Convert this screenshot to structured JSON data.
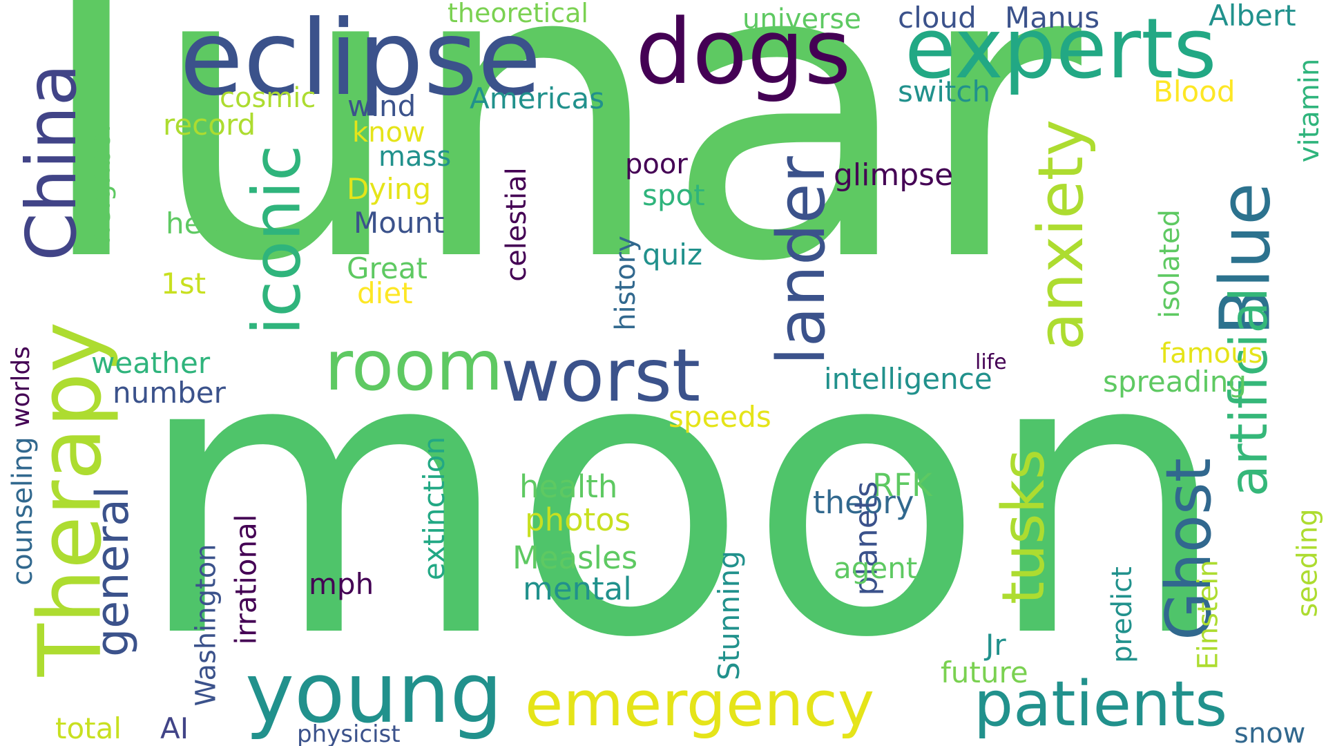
{
  "palette": {
    "background": "#ffffff",
    "green": "#5ec962",
    "teal": "#21918c",
    "seafoam": "#22a884",
    "navy": "#3b528b",
    "purple": "#440154",
    "lime": "#addc30",
    "yellow": "#fde725",
    "indigo": "#414487"
  },
  "words": [
    {
      "text": "lunar",
      "color": "#5ec962",
      "vertical": false
    },
    {
      "text": "moon",
      "color": "#4fc46a",
      "vertical": false
    },
    {
      "text": "eclipse",
      "color": "#3b528b",
      "vertical": false
    },
    {
      "text": "dogs",
      "color": "#440154",
      "vertical": false
    },
    {
      "text": "experts",
      "color": "#22a884",
      "vertical": false
    },
    {
      "text": "China",
      "color": "#414487",
      "vertical": true
    },
    {
      "text": "Therapy",
      "color": "#addc30",
      "vertical": true
    },
    {
      "text": "iconic",
      "color": "#2fb47c",
      "vertical": true
    },
    {
      "text": "room",
      "color": "#5ec962",
      "vertical": false
    },
    {
      "text": "worst",
      "color": "#3b528b",
      "vertical": false
    },
    {
      "text": "lander",
      "color": "#3b528b",
      "vertical": true
    },
    {
      "text": "anxiety",
      "color": "#addc30",
      "vertical": true
    },
    {
      "text": "Blue",
      "color": "#2c728e",
      "vertical": true
    },
    {
      "text": "artificial",
      "color": "#35b779",
      "vertical": true
    },
    {
      "text": "tusks",
      "color": "#addc30",
      "vertical": true
    },
    {
      "text": "Ghost",
      "color": "#31688e",
      "vertical": true
    },
    {
      "text": "young",
      "color": "#21918c",
      "vertical": false
    },
    {
      "text": "emergency",
      "color": "#e5e419",
      "vertical": false
    },
    {
      "text": "patients",
      "color": "#21918c",
      "vertical": false
    },
    {
      "text": "general",
      "color": "#3b528b",
      "vertical": true
    },
    {
      "text": "theoretical",
      "color": "#7ad151",
      "vertical": false
    },
    {
      "text": "universe",
      "color": "#5ec962",
      "vertical": false
    },
    {
      "text": "cloud",
      "color": "#3b528b",
      "vertical": false
    },
    {
      "text": "Manus",
      "color": "#3b528b",
      "vertical": false
    },
    {
      "text": "Albert",
      "color": "#21918c",
      "vertical": false
    },
    {
      "text": "vitamin",
      "color": "#2fb47c",
      "vertical": true
    },
    {
      "text": "switch",
      "color": "#21918c",
      "vertical": false
    },
    {
      "text": "Blood",
      "color": "#fde725",
      "vertical": false
    },
    {
      "text": "cosmic",
      "color": "#addc30",
      "vertical": false
    },
    {
      "text": "wind",
      "color": "#3b528b",
      "vertical": false
    },
    {
      "text": "Americas",
      "color": "#21918c",
      "vertical": false
    },
    {
      "text": "record",
      "color": "#addc30",
      "vertical": false
    },
    {
      "text": "know",
      "color": "#e5e419",
      "vertical": false
    },
    {
      "text": "mass",
      "color": "#21918c",
      "vertical": false
    },
    {
      "text": "neighbor",
      "color": "#5ec962",
      "vertical": true
    },
    {
      "text": "celestial",
      "color": "#440154",
      "vertical": true
    },
    {
      "text": "poor",
      "color": "#440154",
      "vertical": false
    },
    {
      "text": "glimpse",
      "color": "#440154",
      "vertical": false
    },
    {
      "text": "Dying",
      "color": "#e5e419",
      "vertical": false
    },
    {
      "text": "spot",
      "color": "#2fb47c",
      "vertical": false
    },
    {
      "text": "help",
      "color": "#5ec962",
      "vertical": false
    },
    {
      "text": "Mount",
      "color": "#3b528b",
      "vertical": false
    },
    {
      "text": "Great",
      "color": "#5ec962",
      "vertical": false
    },
    {
      "text": "quiz",
      "color": "#21918c",
      "vertical": false
    },
    {
      "text": "1st",
      "color": "#c8e020",
      "vertical": false
    },
    {
      "text": "diet",
      "color": "#fde725",
      "vertical": false
    },
    {
      "text": "history",
      "color": "#31688e",
      "vertical": true
    },
    {
      "text": "isolated",
      "color": "#5ec962",
      "vertical": true
    },
    {
      "text": "worlds",
      "color": "#440154",
      "vertical": true
    },
    {
      "text": "weather",
      "color": "#2fb47c",
      "vertical": false
    },
    {
      "text": "famous",
      "color": "#e5e419",
      "vertical": false
    },
    {
      "text": "life",
      "color": "#440154",
      "vertical": false
    },
    {
      "text": "intelligence",
      "color": "#21918c",
      "vertical": false
    },
    {
      "text": "spreading",
      "color": "#5ec962",
      "vertical": false
    },
    {
      "text": "number",
      "color": "#3b528b",
      "vertical": false
    },
    {
      "text": "speeds",
      "color": "#e5e419",
      "vertical": false
    },
    {
      "text": "extinction",
      "color": "#22a884",
      "vertical": true
    },
    {
      "text": "counseling",
      "color": "#31688e",
      "vertical": true
    },
    {
      "text": "health",
      "color": "#5ec962",
      "vertical": false
    },
    {
      "text": "RFK",
      "color": "#5ec962",
      "vertical": false
    },
    {
      "text": "theory",
      "color": "#31688e",
      "vertical": false
    },
    {
      "text": "photos",
      "color": "#c8e020",
      "vertical": false
    },
    {
      "text": "planets",
      "color": "#3b528b",
      "vertical": false
    },
    {
      "text": "seeding",
      "color": "#addc30",
      "vertical": true
    },
    {
      "text": "Measles",
      "color": "#5ec962",
      "vertical": false
    },
    {
      "text": "irrational",
      "color": "#440154",
      "vertical": true
    },
    {
      "text": "agent",
      "color": "#5ec962",
      "vertical": false
    },
    {
      "text": "mental",
      "color": "#21918c",
      "vertical": false
    },
    {
      "text": "mph",
      "color": "#440154",
      "vertical": false
    },
    {
      "text": "Washington",
      "color": "#3b528b",
      "vertical": true
    },
    {
      "text": "Stunning",
      "color": "#21918c",
      "vertical": true
    },
    {
      "text": "predict",
      "color": "#21918c",
      "vertical": true
    },
    {
      "text": "Einstein",
      "color": "#addc30",
      "vertical": true
    },
    {
      "text": "Jr",
      "color": "#21918c",
      "vertical": false
    },
    {
      "text": "future",
      "color": "#7ad151",
      "vertical": false
    },
    {
      "text": "total",
      "color": "#c8e020",
      "vertical": false
    },
    {
      "text": "AI",
      "color": "#414487",
      "vertical": false
    },
    {
      "text": "physicist",
      "color": "#3b528b",
      "vertical": false
    },
    {
      "text": "snow",
      "color": "#31688e",
      "vertical": false
    }
  ]
}
